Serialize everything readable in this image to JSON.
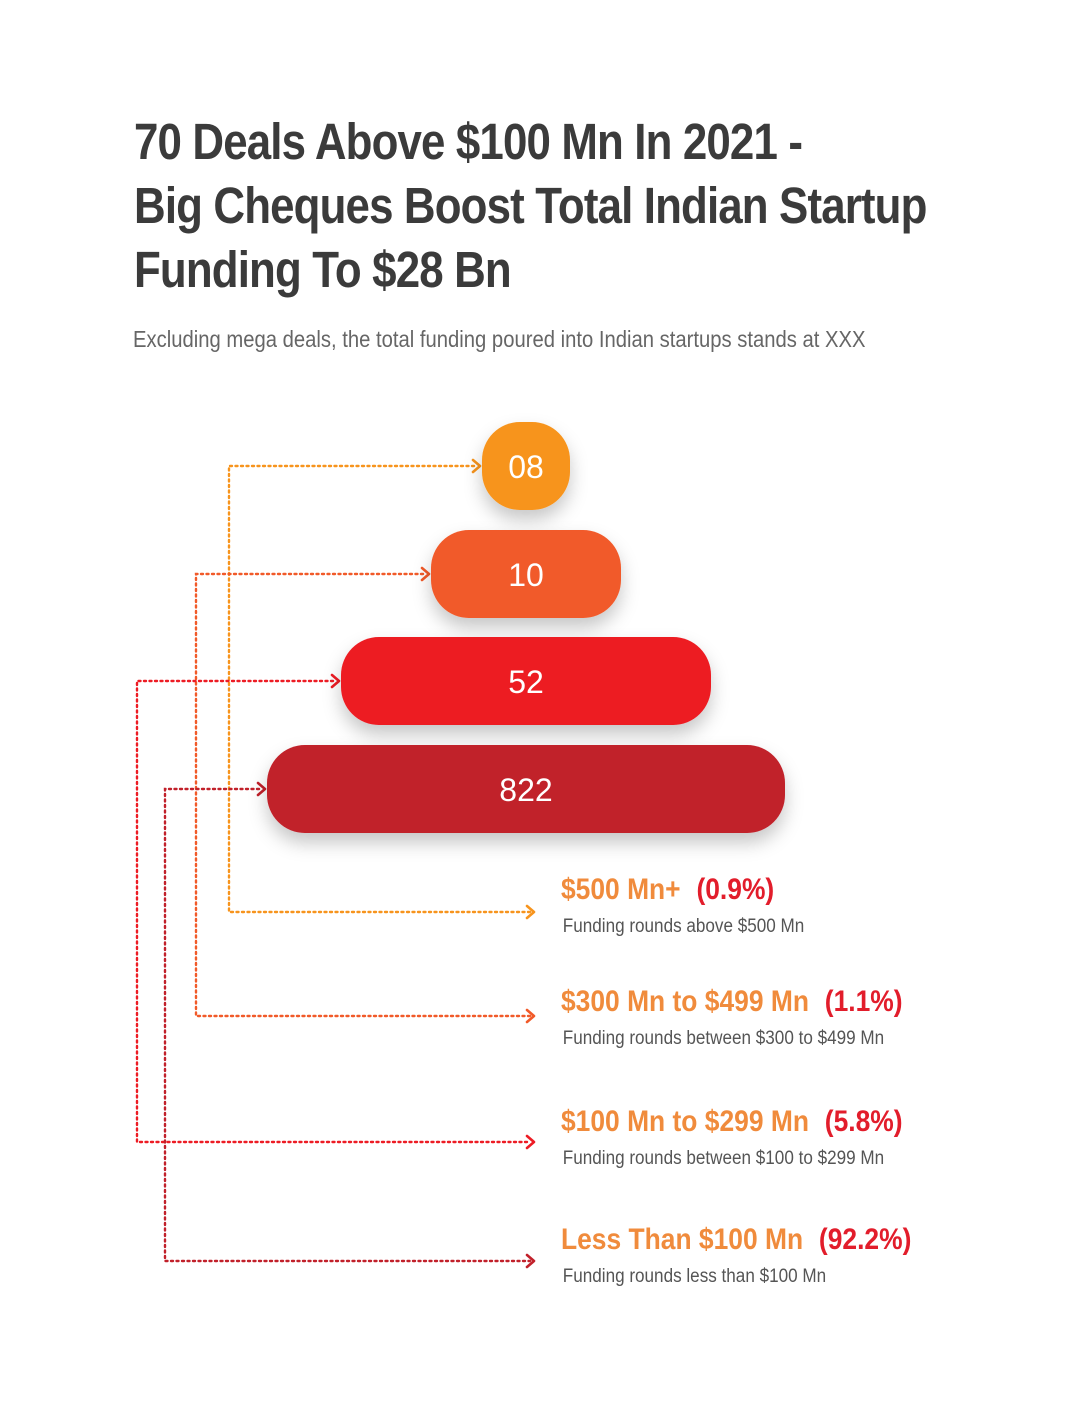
{
  "title": {
    "line1": "70 Deals Above $100 Mn In 2021 -",
    "line2": "Big Cheques Boost Total Indian Startup",
    "line3": "Funding To $28 Bn"
  },
  "subtitle": "Excluding mega deals, the total funding poured into Indian startups stands at XXX",
  "colors": {
    "tier1": "#f7941d",
    "tier2": "#f15a29",
    "tier3": "#ed1c24",
    "tier4": "#c1202a",
    "legend_range": "#f08b3c",
    "legend_pct": "#e21d2b"
  },
  "chart_data": {
    "type": "bar",
    "orientation": "horizontal-pyramid",
    "title": "70 Deals Above $100 Mn In 2021 - Big Cheques Boost Total Indian Startup Funding To $28 Bn",
    "categories": [
      "$500 Mn+",
      "$300 Mn to $499 Mn",
      "$100 Mn to $299 Mn",
      "Less Than $100 Mn"
    ],
    "labels": [
      "08",
      "10",
      "52",
      "822"
    ],
    "values": [
      8,
      10,
      52,
      822
    ],
    "percentages": [
      "(0.9%)",
      "(1.1%)",
      "(5.8%)",
      "(92.2%)"
    ],
    "descriptions": [
      "Funding rounds above $500 Mn",
      "Funding rounds between $300 to $499 Mn",
      "Funding rounds between $100 to $299 Mn",
      "Funding rounds less than $100 Mn"
    ]
  }
}
